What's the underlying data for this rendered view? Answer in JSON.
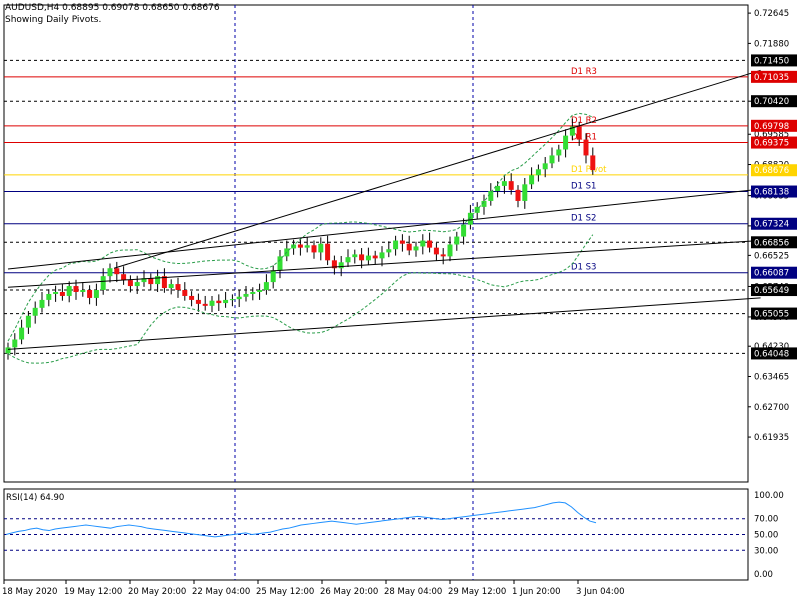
{
  "header": {
    "symbol_line": "AUDUSD,H4  0.68895 0.69078 0.68650 0.68676",
    "pivots_note": "Showing Daily Pivots."
  },
  "chart_data": {
    "type": "candlestick",
    "symbol": "AUDUSD",
    "timeframe": "H4",
    "last_ohlc": {
      "open": 0.68895,
      "high": 0.69078,
      "low": 0.6865,
      "close": 0.68676
    },
    "price_axis": {
      "ylim": [
        0.608,
        0.7285
      ],
      "tick_labels": [
        "0.72645",
        "0.71880",
        "0.70420",
        "0.69585",
        "0.68820",
        "0.68035",
        "0.67270",
        "0.66525",
        "0.65740",
        "0.64970",
        "0.64230",
        "0.63465",
        "0.62700",
        "0.61935"
      ]
    },
    "price_markers": [
      {
        "value": "0.71450",
        "color": "#000000"
      },
      {
        "value": "0.71035",
        "color": "#dd0000"
      },
      {
        "value": "0.70420",
        "color": "#000000"
      },
      {
        "value": "0.69798",
        "color": "#dd0000"
      },
      {
        "value": "0.69375",
        "color": "#dd0000"
      },
      {
        "value": "0.68676",
        "color": "#ffd400"
      },
      {
        "value": "0.68138",
        "color": "#000080"
      },
      {
        "value": "0.67324",
        "color": "#000080"
      },
      {
        "value": "0.66856",
        "color": "#000000"
      },
      {
        "value": "0.66087",
        "color": "#000080"
      },
      {
        "value": "0.65649",
        "color": "#000000"
      },
      {
        "value": "0.65055",
        "color": "#000000"
      },
      {
        "value": "0.64048",
        "color": "#000000"
      }
    ],
    "pivot_levels": [
      {
        "label": "D1 R3",
        "value": 0.71035,
        "color": "#dd0000"
      },
      {
        "label": "D1 R2",
        "value": 0.69798,
        "color": "#dd0000"
      },
      {
        "label": "D1 R1",
        "value": 0.69375,
        "color": "#dd0000"
      },
      {
        "label": "D1 Pivot",
        "value": 0.6856,
        "color": "#ffd400"
      },
      {
        "label": "D1 S1",
        "value": 0.68138,
        "color": "#000080"
      },
      {
        "label": "D1 S2",
        "value": 0.67324,
        "color": "#000080"
      },
      {
        "label": "D1 S3",
        "value": 0.66087,
        "color": "#000080"
      }
    ],
    "dotted_levels": [
      0.7145,
      0.7042,
      0.66856,
      0.65649,
      0.65055,
      0.64048
    ],
    "time_labels": [
      "18 May 2020",
      "19 May 12:00",
      "20 May 20:00",
      "22 May 04:00",
      "25 May 12:00",
      "26 May 20:00",
      "28 May 04:00",
      "29 May 12:00",
      "1 Jun 20:00",
      "3 Jun 04:00"
    ],
    "vertical_gridlines": [
      "22 May 04:00",
      "29 May 12:00"
    ],
    "closes": [
      0.642,
      0.644,
      0.647,
      0.65,
      0.652,
      0.654,
      0.6555,
      0.656,
      0.655,
      0.6575,
      0.656,
      0.6565,
      0.6545,
      0.6565,
      0.66,
      0.662,
      0.6605,
      0.659,
      0.6575,
      0.6585,
      0.6595,
      0.658,
      0.66,
      0.657,
      0.658,
      0.6565,
      0.655,
      0.654,
      0.653,
      0.6525,
      0.6538,
      0.6532,
      0.654,
      0.6542,
      0.6548,
      0.6555,
      0.656,
      0.6565,
      0.6585,
      0.6615,
      0.665,
      0.667,
      0.668,
      0.6672,
      0.6678,
      0.666,
      0.6682,
      0.664,
      0.662,
      0.6635,
      0.6648,
      0.6655,
      0.664,
      0.6652,
      0.6645,
      0.666,
      0.6668,
      0.669,
      0.6682,
      0.6665,
      0.6675,
      0.669,
      0.6672,
      0.6655,
      0.665,
      0.668,
      0.67,
      0.673,
      0.676,
      0.6775,
      0.679,
      0.6815,
      0.6828,
      0.684,
      0.6818,
      0.679,
      0.6832,
      0.6855,
      0.687,
      0.6885,
      0.6905,
      0.692,
      0.6955,
      0.6978,
      0.6945,
      0.6905,
      0.6868
    ],
    "support_lines": [
      {
        "from": [
          0,
          0.6415
        ],
        "to": [
          142,
          0.6545
        ]
      },
      {
        "from": [
          0,
          0.6618
        ],
        "to": [
          142,
          0.682
        ]
      },
      {
        "from": [
          0,
          0.6572
        ],
        "to": [
          142,
          0.669
        ]
      }
    ],
    "channel_top": {
      "from": [
        20,
        0.662
      ],
      "to": [
        142,
        0.712
      ]
    },
    "rsi": {
      "label": "RSI(14) 64.90",
      "value": 64.9,
      "ylim": [
        0,
        100
      ],
      "tick_labels": [
        "100.00",
        "70.00",
        "50.00",
        "30.00",
        "0.00"
      ],
      "levels": [
        70,
        30
      ],
      "values": [
        50,
        52,
        54,
        55,
        57,
        58,
        56,
        55,
        57,
        58,
        59,
        60,
        61,
        62,
        61,
        60,
        59,
        58,
        60,
        61,
        62,
        61,
        60,
        58,
        57,
        56,
        55,
        54,
        53,
        52,
        51,
        50,
        49,
        48,
        47,
        48,
        49,
        50,
        51,
        52,
        50,
        51,
        52,
        53,
        55,
        57,
        58,
        60,
        62,
        63,
        64,
        65,
        66,
        67,
        66,
        65,
        64,
        63,
        64,
        65,
        66,
        67,
        68,
        69,
        70,
        71,
        72,
        73,
        72,
        71,
        70,
        69,
        70,
        71,
        72,
        73,
        74,
        75,
        76,
        77,
        78,
        79,
        80,
        81,
        82,
        83,
        84,
        86,
        88,
        90,
        91,
        90,
        85,
        78,
        72,
        67,
        64.9
      ]
    }
  }
}
